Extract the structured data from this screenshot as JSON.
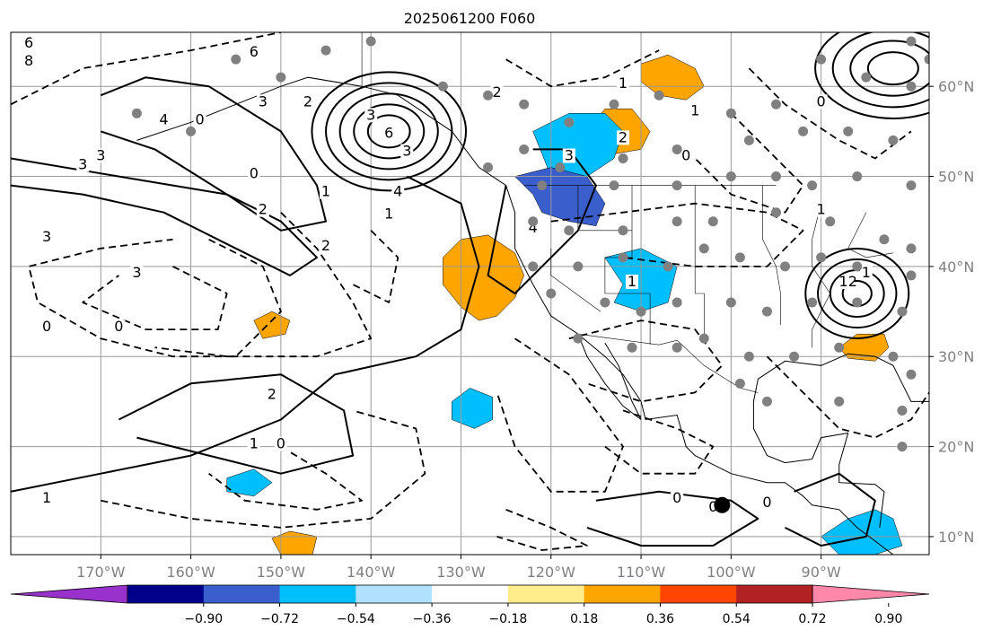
{
  "chart_data": {
    "type": "contour map",
    "title": "2025061200 F060",
    "projection": "lat-lon",
    "lon_range": [
      -180,
      -78
    ],
    "lat_range": [
      8,
      66
    ],
    "x_ticks": [
      "170°W",
      "160°W",
      "150°W",
      "140°W",
      "130°W",
      "120°W",
      "110°W",
      "100°W",
      "90°W"
    ],
    "x_tick_values": [
      -170,
      -160,
      -150,
      -140,
      -130,
      -120,
      -110,
      -100,
      -90
    ],
    "y_ticks": [
      "10°N",
      "20°N",
      "30°N",
      "40°N",
      "50°N",
      "60°N"
    ],
    "y_tick_values": [
      10,
      20,
      30,
      40,
      50,
      60
    ],
    "grid": true,
    "colorbar": {
      "orientation": "horizontal",
      "extend": "both",
      "tick_labels": [
        "−0.90",
        "−0.72",
        "−0.54",
        "−0.36",
        "−0.18",
        "0.18",
        "0.36",
        "0.54",
        "0.72",
        "0.90"
      ],
      "tick_values": [
        -0.9,
        -0.72,
        -0.54,
        -0.36,
        -0.18,
        0.18,
        0.36,
        0.54,
        0.72,
        0.9
      ],
      "colors": [
        "#9932cc",
        "#00008b",
        "#3a5fcd",
        "#00bfff",
        "#b0e2ff",
        "#ffffff",
        "#ffec8b",
        "#ffa500",
        "#ff4500",
        "#b22222",
        "#ff88aa"
      ]
    },
    "contour_labels": [
      "6",
      "8",
      "6",
      "3",
      "4",
      "3",
      "2",
      "0",
      "3",
      "6",
      "3",
      "4",
      "1",
      "3",
      "2",
      "0",
      "3",
      "3",
      "0",
      "2",
      "4",
      "3",
      "2",
      "1",
      "2",
      "1",
      "0",
      "1",
      "2",
      "1",
      "1",
      "0",
      "0",
      "1",
      "12",
      "1",
      "1",
      "0",
      "0",
      "0",
      "0"
    ],
    "shaded_regions": [
      {
        "sign": "positive",
        "level": 0.36,
        "lon": -128,
        "lat": 39
      },
      {
        "sign": "positive",
        "level": 0.36,
        "lon": -113,
        "lat": 55
      },
      {
        "sign": "positive",
        "level": 0.36,
        "lon": -107,
        "lat": 61
      },
      {
        "sign": "positive",
        "level": 0.36,
        "lon": -151,
        "lat": 33
      },
      {
        "sign": "positive",
        "level": 0.36,
        "lon": -85,
        "lat": 31
      },
      {
        "sign": "positive",
        "level": 0.36,
        "lon": -148,
        "lat": 9
      },
      {
        "sign": "negative",
        "level": -0.36,
        "lon": -117,
        "lat": 52
      },
      {
        "sign": "negative",
        "level": -0.54,
        "lon": -118,
        "lat": 47
      },
      {
        "sign": "negative",
        "level": -0.36,
        "lon": -111,
        "lat": 39
      },
      {
        "sign": "negative",
        "level": -0.36,
        "lon": -129,
        "lat": 24
      },
      {
        "sign": "negative",
        "level": -0.36,
        "lon": -154,
        "lat": 16
      },
      {
        "sign": "negative",
        "level": -0.36,
        "lon": -84,
        "lat": 11
      }
    ],
    "station_points": [
      [
        -155,
        63
      ],
      [
        -150,
        61
      ],
      [
        -145,
        64
      ],
      [
        -140,
        65
      ],
      [
        -132,
        60
      ],
      [
        -127,
        59
      ],
      [
        -123,
        58
      ],
      [
        -118,
        56
      ],
      [
        -113,
        58
      ],
      [
        -108,
        59
      ],
      [
        -100,
        57
      ],
      [
        -95,
        58
      ],
      [
        -90,
        63
      ],
      [
        -85,
        61
      ],
      [
        -80,
        60
      ],
      [
        -80,
        65
      ],
      [
        -78,
        63
      ],
      [
        -160,
        55
      ],
      [
        -166,
        57
      ],
      [
        -123,
        53
      ],
      [
        -127,
        51
      ],
      [
        -119,
        51
      ],
      [
        -112,
        52
      ],
      [
        -106,
        53
      ],
      [
        -98,
        54
      ],
      [
        -92,
        55
      ],
      [
        -87,
        55
      ],
      [
        -82,
        54
      ],
      [
        -121,
        49
      ],
      [
        -113,
        49
      ],
      [
        -106,
        49
      ],
      [
        -100,
        50
      ],
      [
        -95,
        50
      ],
      [
        -91,
        49
      ],
      [
        -86,
        50
      ],
      [
        -80,
        49
      ],
      [
        -122,
        45
      ],
      [
        -118,
        44
      ],
      [
        -112,
        44
      ],
      [
        -106,
        45
      ],
      [
        -102,
        45
      ],
      [
        -95,
        46
      ],
      [
        -89,
        45
      ],
      [
        -83,
        43
      ],
      [
        -80,
        42
      ],
      [
        -122,
        40
      ],
      [
        -117,
        40
      ],
      [
        -112,
        41
      ],
      [
        -107,
        40
      ],
      [
        -103,
        42
      ],
      [
        -99,
        41
      ],
      [
        -94,
        40
      ],
      [
        -90,
        41
      ],
      [
        -86,
        40
      ],
      [
        -80,
        39
      ],
      [
        -120,
        37
      ],
      [
        -114,
        36
      ],
      [
        -110,
        35
      ],
      [
        -106,
        36
      ],
      [
        -100,
        36
      ],
      [
        -96,
        35
      ],
      [
        -91,
        36
      ],
      [
        -86,
        36
      ],
      [
        -81,
        35
      ],
      [
        -117,
        32
      ],
      [
        -111,
        31
      ],
      [
        -106,
        31
      ],
      [
        -103,
        32
      ],
      [
        -98,
        30
      ],
      [
        -93,
        30
      ],
      [
        -88,
        31
      ],
      [
        -82,
        30
      ],
      [
        -80,
        28
      ],
      [
        -99,
        27
      ],
      [
        -96,
        25
      ],
      [
        -88,
        25
      ],
      [
        -81,
        24
      ],
      [
        -81,
        20
      ]
    ],
    "markers": [
      {
        "label": "",
        "lon": -101,
        "lat": 13.5
      }
    ]
  }
}
